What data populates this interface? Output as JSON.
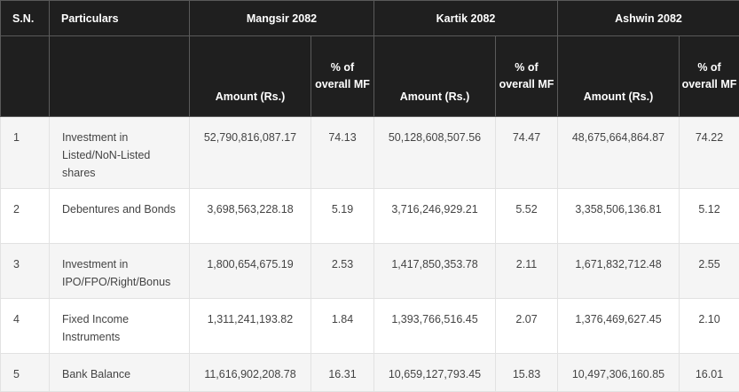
{
  "table": {
    "headers": {
      "sn": "S.N.",
      "particulars": "Particulars",
      "periods": [
        "Mangsir 2082",
        "Kartik 2082",
        "Ashwin 2082"
      ],
      "amount": "Amount (Rs.)",
      "pct": "% of overall MF"
    },
    "rows": [
      {
        "sn": "1",
        "particular": "Investment in Listed/NoN-Listed shares",
        "values": [
          "52,790,816,087.17",
          "74.13",
          "50,128,608,507.56",
          "74.47",
          "48,675,664,864.87",
          "74.22"
        ]
      },
      {
        "sn": "2",
        "particular": "Debentures and Bonds",
        "values": [
          "3,698,563,228.18",
          "5.19",
          "3,716,246,929.21",
          "5.52",
          "3,358,506,136.81",
          "5.12"
        ]
      },
      {
        "sn": "3",
        "particular": "Investment in IPO/FPO/Right/Bonus",
        "values": [
          "1,800,654,675.19",
          "2.53",
          "1,417,850,353.78",
          "2.11",
          "1,671,832,712.48",
          "2.55"
        ]
      },
      {
        "sn": "4",
        "particular": "Fixed Income Instruments",
        "values": [
          "1,311,241,193.82",
          "1.84",
          "1,393,766,516.45",
          "2.07",
          "1,376,469,627.45",
          "2.10"
        ]
      },
      {
        "sn": "5",
        "particular": "Bank Balance",
        "values": [
          "11,616,902,208.78",
          "16.31",
          "10,659,127,793.45",
          "15.83",
          "10,497,306,160.85",
          "16.01"
        ]
      }
    ]
  }
}
